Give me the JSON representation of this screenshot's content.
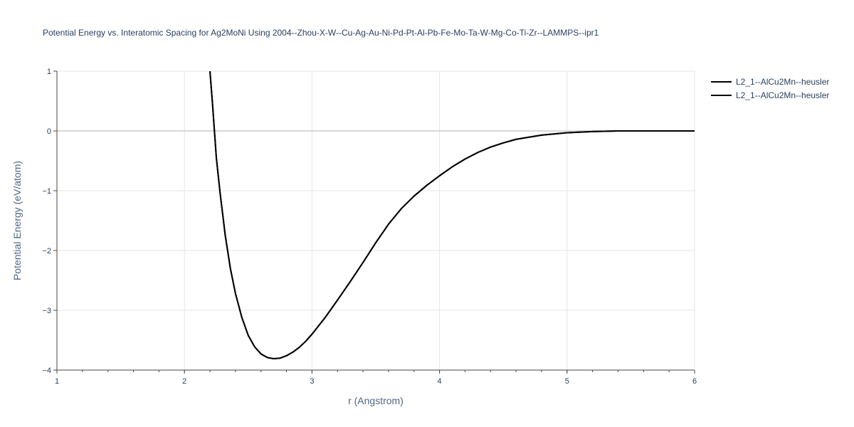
{
  "chart_data": {
    "type": "line",
    "title": "Potential Energy vs. Interatomic Spacing for Ag2MoNi Using 2004--Zhou-X-W--Cu-Ag-Au-Ni-Pd-Pt-Al-Pb-Fe-Mo-Ta-W-Mg-Co-Ti-Zr--LAMMPS--ipr1",
    "xlabel": "r (Angstrom)",
    "ylabel": "Potential Energy (eV/atom)",
    "xlim": [
      1,
      6
    ],
    "ylim": [
      -4,
      1
    ],
    "x_ticks": [
      1,
      2,
      3,
      4,
      5,
      6
    ],
    "x_tick_labels": [
      "1",
      "2",
      "3",
      "4",
      "5",
      "6"
    ],
    "y_ticks": [
      1,
      0,
      -1,
      -2,
      -3,
      -4
    ],
    "y_tick_labels": [
      "1",
      "0",
      "−1",
      "−2",
      "−3",
      "−4"
    ],
    "grid": true,
    "legend_position": "top-right",
    "series": [
      {
        "name": "L2_1--AlCu2Mn--heusler",
        "color": "#000000",
        "x": [
          2.2,
          2.22,
          2.25,
          2.28,
          2.32,
          2.36,
          2.4,
          2.45,
          2.5,
          2.55,
          2.6,
          2.65,
          2.7,
          2.75,
          2.8,
          2.85,
          2.9,
          2.95,
          3.0,
          3.1,
          3.2,
          3.3,
          3.4,
          3.5,
          3.6,
          3.7,
          3.8,
          3.9,
          4.0,
          4.1,
          4.2,
          4.3,
          4.4,
          4.5,
          4.6,
          4.8,
          5.0,
          5.2,
          5.4,
          5.6,
          5.8,
          6.0
        ],
        "y": [
          1.0,
          0.45,
          -0.45,
          -1.05,
          -1.75,
          -2.3,
          -2.72,
          -3.12,
          -3.42,
          -3.61,
          -3.73,
          -3.79,
          -3.81,
          -3.8,
          -3.76,
          -3.7,
          -3.62,
          -3.52,
          -3.4,
          -3.13,
          -2.83,
          -2.52,
          -2.2,
          -1.87,
          -1.56,
          -1.3,
          -1.09,
          -0.91,
          -0.75,
          -0.6,
          -0.47,
          -0.36,
          -0.27,
          -0.2,
          -0.14,
          -0.07,
          -0.03,
          -0.01,
          0.0,
          0.0,
          0.0,
          0.0
        ]
      },
      {
        "name": "L2_1--AlCu2Mn--heusler",
        "color": "#000000",
        "x": [
          2.2,
          2.22,
          2.25,
          2.28,
          2.32,
          2.36,
          2.4,
          2.45,
          2.5,
          2.55,
          2.6,
          2.65,
          2.7,
          2.75,
          2.8,
          2.85,
          2.9,
          2.95,
          3.0,
          3.1,
          3.2,
          3.3,
          3.4,
          3.5,
          3.6,
          3.7,
          3.8,
          3.9,
          4.0,
          4.1,
          4.2,
          4.3,
          4.4,
          4.5,
          4.6,
          4.8,
          5.0,
          5.2,
          5.4,
          5.6,
          5.8,
          6.0
        ],
        "y": [
          1.0,
          0.45,
          -0.45,
          -1.05,
          -1.75,
          -2.3,
          -2.72,
          -3.12,
          -3.42,
          -3.61,
          -3.73,
          -3.79,
          -3.81,
          -3.8,
          -3.76,
          -3.7,
          -3.62,
          -3.52,
          -3.4,
          -3.13,
          -2.83,
          -2.52,
          -2.2,
          -1.87,
          -1.56,
          -1.3,
          -1.09,
          -0.91,
          -0.75,
          -0.6,
          -0.47,
          -0.36,
          -0.27,
          -0.2,
          -0.14,
          -0.07,
          -0.03,
          -0.01,
          0.0,
          0.0,
          0.0,
          0.0
        ]
      }
    ]
  }
}
